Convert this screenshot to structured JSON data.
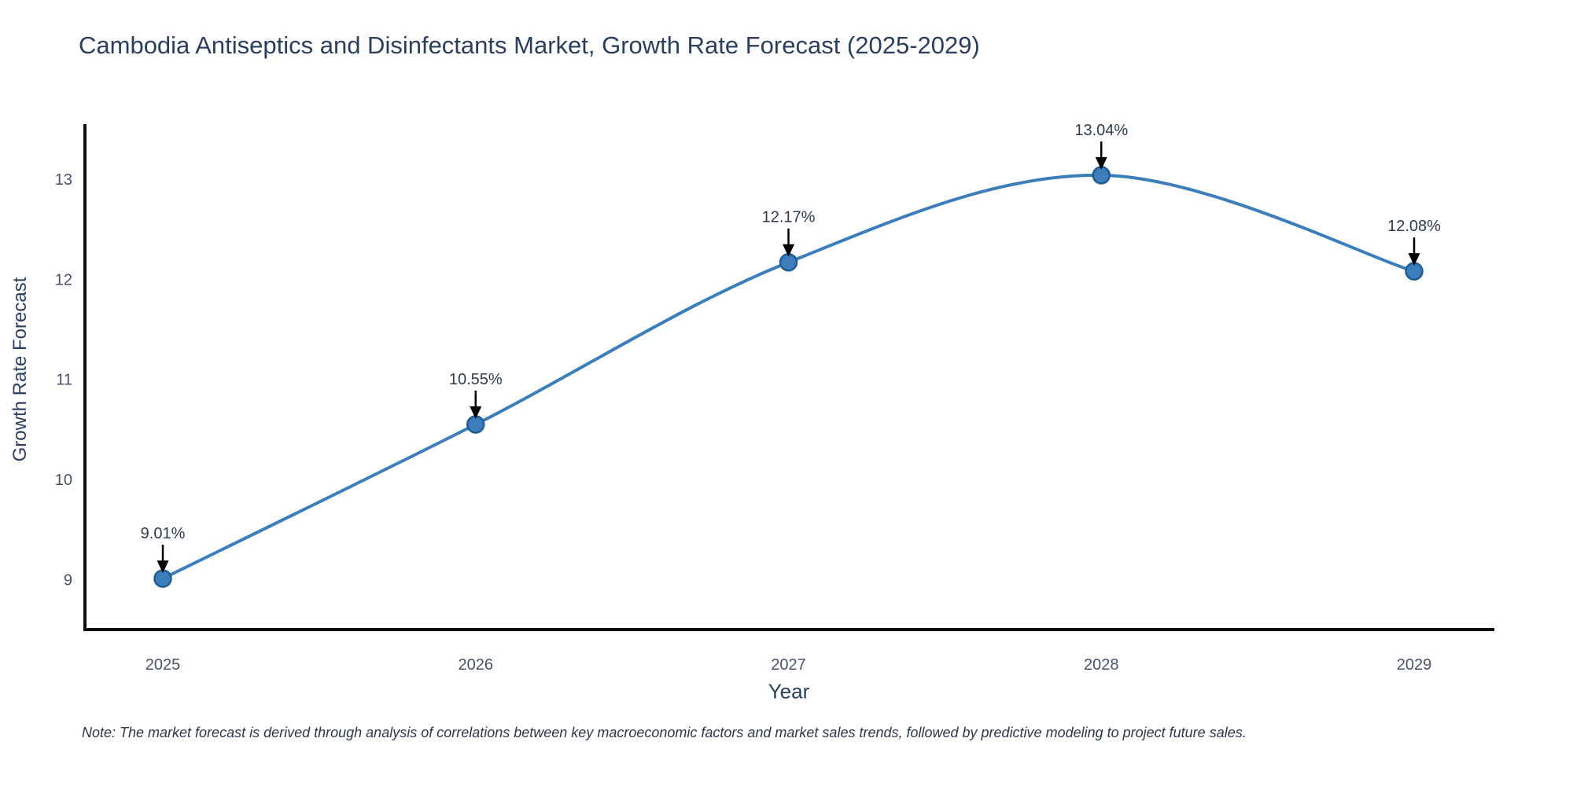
{
  "note": "Note: The market forecast is derived through analysis of correlations between key macroeconomic factors and market sales trends, followed by predictive modeling to project future sales.",
  "chart_data": {
    "type": "line",
    "title": "Cambodia Antiseptics and Disinfectants Market, Growth Rate Forecast (2025-2029)",
    "xlabel": "Year",
    "ylabel": "Growth Rate Forecast",
    "categories": [
      "2025",
      "2026",
      "2027",
      "2028",
      "2029"
    ],
    "series": [
      {
        "name": "Growth Rate Forecast",
        "values": [
          9.01,
          10.55,
          12.17,
          13.04,
          12.08
        ],
        "point_labels": [
          "9.01%",
          "10.55%",
          "12.17%",
          "13.04%",
          "12.08%"
        ]
      }
    ],
    "yticks": [
      9,
      10,
      11,
      12,
      13
    ],
    "ylim": [
      8.5,
      13.55
    ],
    "line_shape": "spline",
    "grid": false,
    "legend": "none",
    "colors": {
      "line": "#3c7ebc",
      "marker_fill": "#3c7ebc",
      "marker_edge": "#1f5c96",
      "axis_line": "#0d0d0d",
      "tick_text": "#46536a",
      "annotation_text": "#2e3b4e",
      "annotation_arrow": "#000000"
    }
  }
}
